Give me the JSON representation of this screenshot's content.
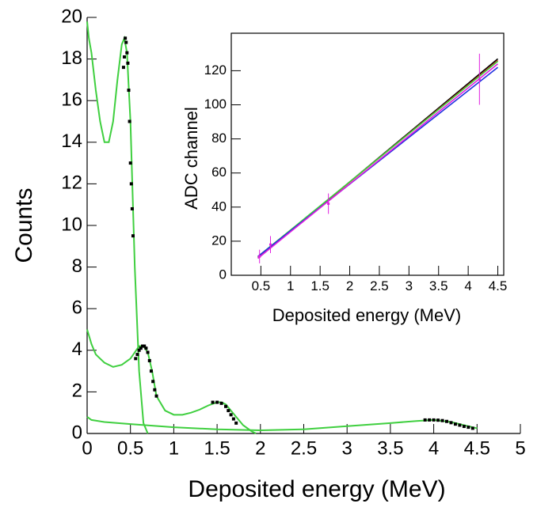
{
  "chart_data": [
    {
      "type": "line",
      "x_label": "Deposited energy (MeV)",
      "y_label": "Counts",
      "xlim": [
        0,
        5
      ],
      "ylim": [
        0,
        20
      ],
      "xticks": [
        0,
        0.5,
        1,
        1.5,
        2,
        2.5,
        3,
        3.5,
        4,
        4.5,
        5
      ],
      "yticks": [
        0,
        2,
        4,
        6,
        8,
        10,
        12,
        14,
        16,
        18,
        20
      ],
      "series": [
        {
          "mode": "line",
          "color": "#3fcf3f",
          "x": [
            0,
            0.02,
            0.05,
            0.1,
            0.15,
            0.2,
            0.25,
            0.3,
            0.35,
            0.4,
            0.43,
            0.46,
            0.5,
            0.55,
            0.6,
            0.65,
            0.7
          ],
          "values": [
            19.8,
            19,
            18.3,
            16.5,
            15,
            14,
            14,
            15,
            17,
            18.7,
            19,
            18.3,
            15,
            8,
            3,
            0.5,
            0
          ]
        },
        {
          "mode": "line",
          "color": "#3fcf3f",
          "x": [
            0,
            0.05,
            0.1,
            0.2,
            0.3,
            0.4,
            0.5,
            0.55,
            0.6,
            0.65,
            0.7,
            0.75,
            0.8,
            0.9,
            1.0,
            1.1,
            1.2,
            1.3,
            1.4,
            1.5,
            1.55,
            1.6,
            1.7,
            1.8,
            1.9,
            1.95
          ],
          "values": [
            5,
            4.3,
            3.8,
            3.4,
            3.2,
            3.3,
            3.6,
            3.9,
            4.2,
            4.2,
            3.9,
            3,
            1.8,
            1.1,
            0.9,
            0.9,
            1.0,
            1.15,
            1.35,
            1.5,
            1.5,
            1.4,
            0.9,
            0.4,
            0.1,
            0
          ]
        },
        {
          "mode": "line",
          "color": "#3fcf3f",
          "x": [
            0,
            0.05,
            0.2,
            0.5,
            1,
            1.5,
            2,
            2.5,
            3,
            3.5,
            3.8,
            4.0,
            4.2,
            4.4,
            4.5
          ],
          "values": [
            0.8,
            0.65,
            0.55,
            0.45,
            0.3,
            0.2,
            0.15,
            0.2,
            0.35,
            0.5,
            0.6,
            0.65,
            0.55,
            0.35,
            0.25
          ]
        },
        {
          "mode": "markers",
          "color": "#000000",
          "x": [
            0.42,
            0.43,
            0.44,
            0.45,
            0.46,
            0.47,
            0.48,
            0.49,
            0.5,
            0.51,
            0.52,
            0.53
          ],
          "values": [
            17.6,
            18.1,
            19,
            18.8,
            18.3,
            17.8,
            16.5,
            15,
            13,
            12,
            10.8,
            9.5
          ]
        },
        {
          "mode": "markers",
          "color": "#000000",
          "x": [
            0.56,
            0.58,
            0.6,
            0.62,
            0.64,
            0.66,
            0.68,
            0.7,
            0.72,
            0.74,
            0.76,
            0.78,
            0.8
          ],
          "values": [
            3.6,
            3.8,
            4.0,
            4.1,
            4.2,
            4.2,
            4.1,
            3.9,
            3.5,
            3.0,
            2.5,
            2.1,
            1.8
          ]
        },
        {
          "mode": "markers",
          "color": "#000000",
          "x": [
            1.45,
            1.5,
            1.55,
            1.6,
            1.63,
            1.66,
            1.69,
            1.72
          ],
          "values": [
            1.5,
            1.5,
            1.45,
            1.3,
            1.1,
            0.9,
            0.7,
            0.5
          ]
        },
        {
          "mode": "markers",
          "color": "#000000",
          "x": [
            3.9,
            3.95,
            4.0,
            4.05,
            4.1,
            4.15,
            4.2,
            4.25,
            4.3,
            4.35,
            4.4,
            4.45
          ],
          "values": [
            0.65,
            0.65,
            0.65,
            0.64,
            0.62,
            0.58,
            0.52,
            0.45,
            0.4,
            0.34,
            0.3,
            0.25
          ]
        }
      ]
    },
    {
      "type": "scatter",
      "x_label": "Deposited energy (MeV)",
      "y_label": "ADC channel",
      "xlim": [
        0,
        4.6
      ],
      "ylim": [
        0,
        142
      ],
      "xticks": [
        0.5,
        1,
        1.5,
        2,
        2.5,
        3,
        3.5,
        4,
        4.5
      ],
      "yticks": [
        0,
        20,
        40,
        60,
        80,
        100,
        120
      ],
      "series": [
        {
          "mode": "line",
          "color": "#000000",
          "x": [
            0.45,
            4.5
          ],
          "values": [
            10,
            127
          ]
        },
        {
          "mode": "line",
          "color": "#e02020",
          "x": [
            0.45,
            4.5
          ],
          "values": [
            10.5,
            126
          ]
        },
        {
          "mode": "line",
          "color": "#3fcf3f",
          "x": [
            0.45,
            4.5
          ],
          "values": [
            11,
            125.5
          ]
        },
        {
          "mode": "line",
          "color": "#2030e0",
          "x": [
            0.45,
            4.5
          ],
          "values": [
            11,
            122
          ]
        },
        {
          "mode": "line",
          "color": "#e020e0",
          "x": [
            0.45,
            4.5
          ],
          "values": [
            10,
            124
          ]
        },
        {
          "mode": "markers",
          "color": "#e020e0",
          "x": [
            0.477,
            0.662,
            1.64,
            4.19
          ],
          "values": [
            11,
            18,
            42,
            115
          ],
          "errors": [
            4,
            5,
            6,
            15
          ]
        }
      ]
    }
  ]
}
